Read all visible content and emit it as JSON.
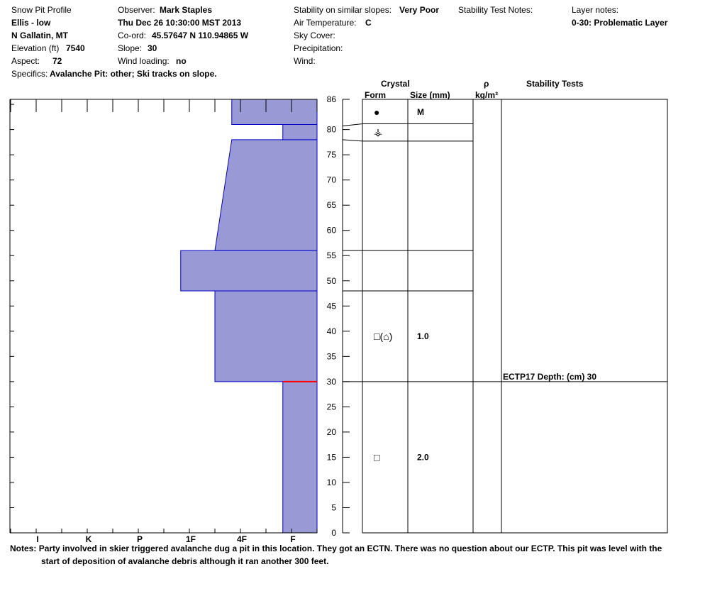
{
  "header": {
    "col1": {
      "title": "Snow Pit Profile",
      "location": "Ellis - low",
      "region": "N Gallatin, MT",
      "elevation_label": "Elevation (ft)",
      "elevation_value": "7540",
      "aspect_label": "Aspect:",
      "aspect_value": "72",
      "specifics_label": "Specifics:",
      "specifics_value": "Avalanche Pit: other; Ski tracks on slope."
    },
    "col2": {
      "observer_label": "Observer:",
      "observer_value": "Mark Staples",
      "date": "Thu Dec 26 10:30:00 MST 2013",
      "coord_label": "Co-ord:",
      "coord_value": "45.57647 N 110.94865 W",
      "slope_label": "Slope:",
      "slope_value": "30",
      "wind_loading_label": "Wind loading:",
      "wind_loading_value": "no"
    },
    "col3": {
      "stability_label": "Stability on similar slopes:",
      "stability_value": "Very Poor",
      "air_temp_label": "Air Temperature:",
      "air_temp_value": "C",
      "sky_cover_label": "Sky Cover:",
      "precip_label": "Precipitation:",
      "wind_label": "Wind:"
    },
    "col4": {
      "stability_notes_label": "Stability Test Notes:"
    },
    "col5": {
      "layer_notes_label": "Layer notes:",
      "layer_notes_value": "0-30: Problematic Layer"
    }
  },
  "table_headers": {
    "crystal": "Crystal",
    "form": "Form",
    "size": "Size (mm)",
    "rho": "ρ",
    "density_unit": "kg/m³",
    "stability_tests": "Stability Tests"
  },
  "notes": {
    "label": "Notes:",
    "line1": "Party involved in skier triggered avalanche dug a pit in this location. They got an ECTN. There was no question about our ECTP. This pit was level with the",
    "line2": "start of deposition of avalanche debris although it ran another 300 feet."
  },
  "chart_data": {
    "type": "bar",
    "title": "Snow Pit Profile",
    "y_axis": {
      "range": [
        0,
        86
      ],
      "ticks": [
        0,
        5,
        10,
        15,
        20,
        25,
        30,
        35,
        40,
        45,
        50,
        55,
        60,
        65,
        70,
        75,
        80,
        86
      ]
    },
    "hardness_axis": {
      "labels": [
        "I",
        "K",
        "P",
        "1F",
        "4F",
        "F"
      ],
      "scale_note": "hardness index 0=F (right edge) ... 6=I"
    },
    "hardness_profile": [
      {
        "from": 0,
        "to": 30,
        "hardness": "F",
        "top_value": 0.67,
        "bottom_value": 0.67
      },
      {
        "from": 30,
        "to": 48,
        "hardness": "1F",
        "top_value": 2.0,
        "bottom_value": 2.0
      },
      {
        "from": 48,
        "to": 56,
        "hardness": "1F+",
        "top_value": 2.67,
        "bottom_value": 2.67
      },
      {
        "from": 56,
        "to": 78,
        "hardness": "4F to 1F",
        "top_value": 1.67,
        "bottom_value": 2.0
      },
      {
        "from": 78,
        "to": 81,
        "hardness": "F",
        "top_value": 0.67,
        "bottom_value": 0.67
      },
      {
        "from": 81,
        "to": 86,
        "hardness": "4F",
        "top_value": 1.67,
        "bottom_value": 1.67
      }
    ],
    "weak_layer_depth": 30,
    "layer_boundaries": [
      30,
      48,
      56,
      78,
      81
    ],
    "crystals": [
      {
        "depth": 83.5,
        "form_glyph": "●",
        "size": "M"
      },
      {
        "depth": 79.5,
        "form_glyph": "⚶",
        "size": ""
      },
      {
        "depth": 39,
        "form_glyph": "□(⌂)",
        "size": "1.0"
      },
      {
        "depth": 15,
        "form_glyph": "□",
        "size": "2.0"
      }
    ],
    "stability_tests": [
      {
        "depth": 30,
        "text": "ECTP17   Depth: (cm) 30"
      }
    ],
    "colors": {
      "fill": "#9999d6",
      "outline": "#0000cc",
      "weak_layer": "#ff0000",
      "grid": "#000000"
    }
  }
}
